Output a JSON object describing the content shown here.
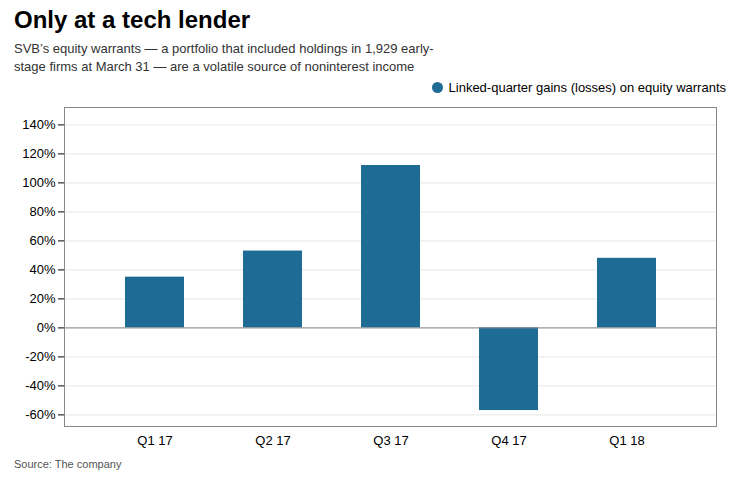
{
  "chart_data": {
    "type": "bar",
    "title": "Only at a tech lender",
    "subtitle": "SVB’s equity warrants — a portfolio that included holdings in 1,929 early-\nstage firms at March 31 — are a volatile source of noninterest income",
    "source": "Source: The company",
    "categories": [
      "Q1 17",
      "Q2 17",
      "Q3 17",
      "Q4 17",
      "Q1 18"
    ],
    "series": [
      {
        "name": "Linked-quarter gains (losses) on equity warrants",
        "color": "#1e6b96",
        "values": [
          35,
          53,
          112,
          -57,
          48
        ]
      }
    ],
    "ylim": [
      -68,
      152
    ],
    "yticks": [
      {
        "value": -60,
        "label": "-60%"
      },
      {
        "value": -40,
        "label": "-40%"
      },
      {
        "value": -20,
        "label": "-20%"
      },
      {
        "value": 0,
        "label": "0%"
      },
      {
        "value": 20,
        "label": "20%"
      },
      {
        "value": 40,
        "label": "40%"
      },
      {
        "value": 60,
        "label": "60%"
      },
      {
        "value": 80,
        "label": "80%"
      },
      {
        "value": 100,
        "label": "100%"
      },
      {
        "value": 120,
        "label": "120%"
      },
      {
        "value": 140,
        "label": "140%"
      }
    ],
    "grid": true,
    "legend": "upper right"
  }
}
